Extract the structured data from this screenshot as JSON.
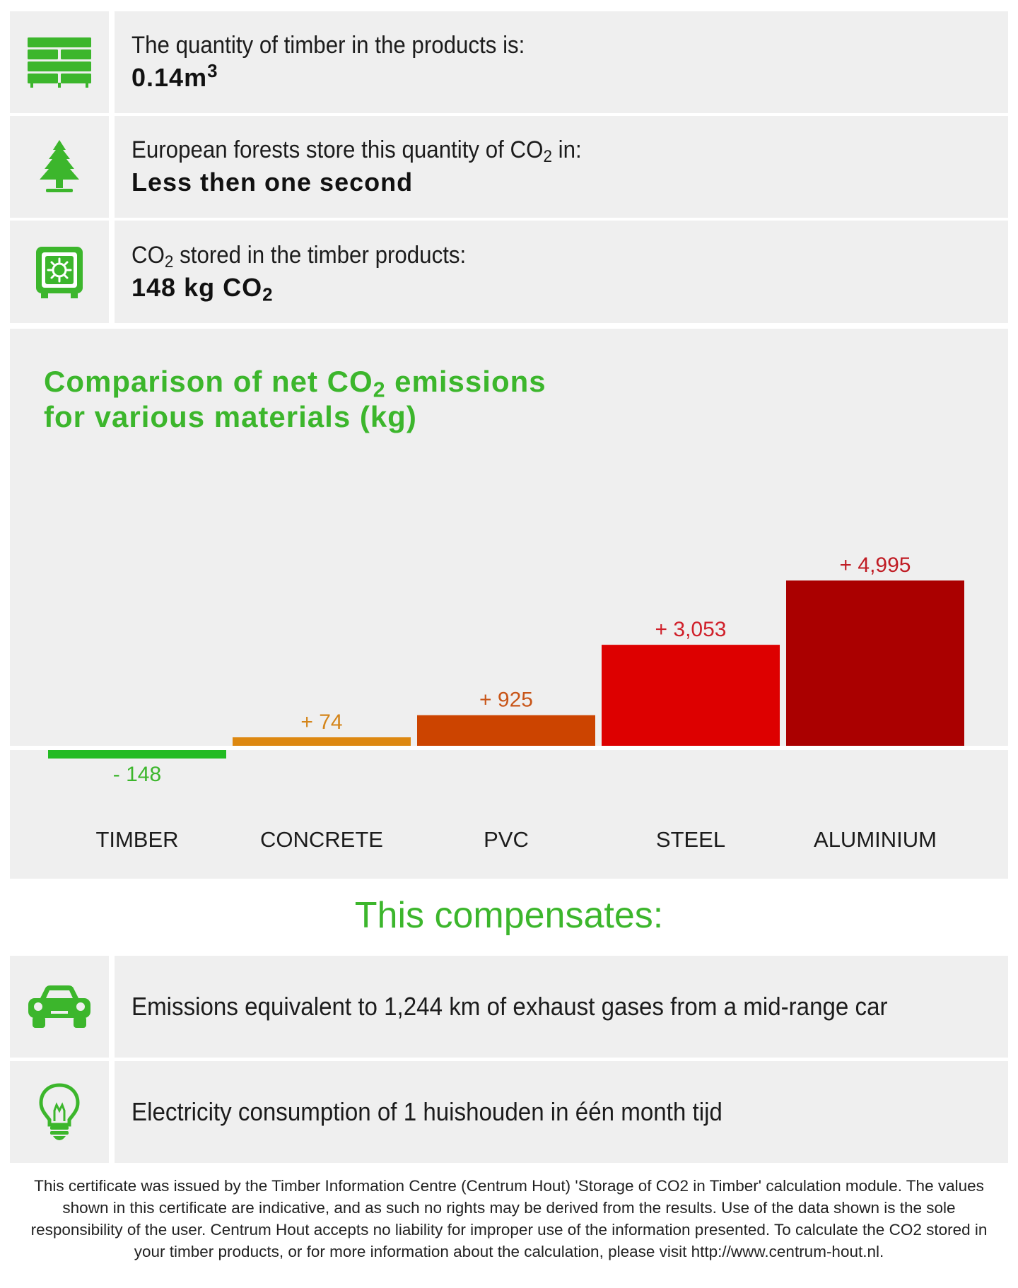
{
  "info_rows": [
    {
      "icon": "timber-stack-icon",
      "line1": "The quantity of timber in the products is:",
      "value": "0.14m",
      "value_sup": "3"
    },
    {
      "icon": "tree-icon",
      "line1_pre": "European forests store this quantity of CO",
      "line1_sub": "2",
      "line1_post": " in:",
      "value": "Less then one second"
    },
    {
      "icon": "safe-icon",
      "line1_pre": "CO",
      "line1_sub": "2",
      "line1_post": " stored in the timber products:",
      "value_pre": "148 kg CO",
      "value_sub": "2"
    }
  ],
  "chart_title": {
    "line1_pre": "Comparison of net CO",
    "line1_sub": "2",
    "line1_post": " emissions",
    "line2": "for various materials (kg)"
  },
  "chart_data": {
    "type": "bar",
    "title": "Comparison of net CO2 emissions for various materials (kg)",
    "categories": [
      "TIMBER",
      "CONCRETE",
      "PVC",
      "STEEL",
      "ALUMINIUM"
    ],
    "values": [
      -148,
      74,
      925,
      3053,
      4995
    ],
    "value_labels": [
      "- 148",
      "+ 74",
      "+ 925",
      "+ 3,053",
      "+ 4,995"
    ],
    "bar_colors": [
      "#22bb22",
      "#dd8811",
      "#cc4400",
      "#dd0000",
      "#aa0000"
    ],
    "label_colors": [
      "#3cb62c",
      "#d4851a",
      "#c85518",
      "#d0202a",
      "#c01c24"
    ],
    "grid": false,
    "legend": "none"
  },
  "compensates": {
    "heading": "This compensates:",
    "rows": [
      {
        "icon": "car-icon",
        "text": "Emissions equivalent to 1,244 km of exhaust gases from a mid-range car"
      },
      {
        "icon": "light-bulb-icon",
        "text": "Electricity consumption of 1 huishouden in één month tijd"
      }
    ]
  },
  "footer_lines": [
    "This certificate was issued by the Timber Information Centre (Centrum Hout) 'Storage of CO2 in Timber' calculation module. The values",
    "shown in this certificate are indicative, and as such no rights may be derived from the results. Use of the data shown is the sole",
    "responsibility of the user. Centrum Hout accepts no liability for improper use of the information presented. To calculate the CO2 stored in",
    "your timber products, or for more information about the calculation, please visit http://www.centrum-hout.nl."
  ],
  "colors": {
    "accent_green": "#3cb62c",
    "panel_bg": "#efefef"
  }
}
